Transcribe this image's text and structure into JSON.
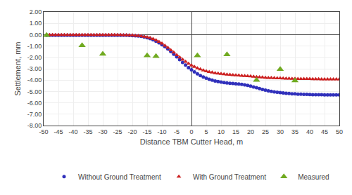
{
  "chart_data": {
    "type": "scatter",
    "x_label": "Distance TBM Cutter Head, m",
    "y_label": "Settlement, mm",
    "xlim": [
      -50,
      50
    ],
    "ylim": [
      -8.0,
      2.0
    ],
    "xticks": [
      -50,
      -45,
      -40,
      -35,
      -30,
      -25,
      -20,
      -15,
      -10,
      -5,
      0,
      5,
      10,
      15,
      20,
      25,
      30,
      35,
      40,
      45,
      50
    ],
    "yticks": [
      {
        "value": -8.0,
        "label": "-8.00"
      },
      {
        "value": -7.0,
        "label": "-7.00"
      },
      {
        "value": -6.0,
        "label": "-6.00"
      },
      {
        "value": -5.0,
        "label": "-5.00"
      },
      {
        "value": -4.0,
        "label": "-4.00"
      },
      {
        "value": -3.0,
        "label": "-3.00"
      },
      {
        "value": -2.0,
        "label": "-2.00"
      },
      {
        "value": -1.0,
        "label": "-1.00"
      },
      {
        "value": 0.0,
        "label": "0.00"
      },
      {
        "value": 1.0,
        "label": "1.00"
      },
      {
        "value": 2.0,
        "label": "2.00"
      }
    ],
    "grid": true,
    "legend": "bottom",
    "series": [
      {
        "name": "Without Ground Treatment",
        "color": "#3030bb",
        "marker": "circle",
        "x": [
          -49,
          -48,
          -47,
          -46,
          -45,
          -44,
          -43,
          -42,
          -41,
          -40,
          -39,
          -38,
          -37,
          -36,
          -35,
          -34,
          -33,
          -32,
          -31,
          -30,
          -29,
          -28,
          -27,
          -26,
          -25,
          -24,
          -23,
          -22,
          -21,
          -20,
          -19,
          -18,
          -17,
          -16,
          -15,
          -14,
          -13,
          -12,
          -11,
          -10,
          -9,
          -8,
          -7,
          -6,
          -5,
          -4,
          -3,
          -2,
          -1,
          0,
          1,
          2,
          3,
          4,
          5,
          6,
          7,
          8,
          9,
          10,
          11,
          12,
          13,
          14,
          15,
          16,
          17,
          18,
          19,
          20,
          21,
          22,
          23,
          24,
          25,
          26,
          27,
          28,
          29,
          30,
          31,
          32,
          33,
          34,
          35,
          36,
          37,
          38,
          39,
          40,
          41,
          42,
          43,
          44,
          45,
          46,
          47,
          48,
          49,
          50
        ],
        "values": [
          -0.05,
          -0.05,
          -0.05,
          -0.05,
          -0.05,
          -0.05,
          -0.05,
          -0.05,
          -0.05,
          -0.05,
          -0.05,
          -0.05,
          -0.05,
          -0.05,
          -0.05,
          -0.05,
          -0.05,
          -0.05,
          -0.05,
          -0.05,
          -0.05,
          -0.05,
          -0.05,
          -0.05,
          -0.05,
          -0.05,
          -0.05,
          -0.06,
          -0.07,
          -0.08,
          -0.1,
          -0.12,
          -0.15,
          -0.2,
          -0.27,
          -0.35,
          -0.45,
          -0.58,
          -0.72,
          -0.88,
          -1.05,
          -1.25,
          -1.48,
          -1.72,
          -1.95,
          -2.2,
          -2.45,
          -2.68,
          -2.9,
          -3.1,
          -3.28,
          -3.45,
          -3.6,
          -3.73,
          -3.84,
          -3.93,
          -4.01,
          -4.08,
          -4.13,
          -4.18,
          -4.22,
          -4.25,
          -4.28,
          -4.3,
          -4.32,
          -4.35,
          -4.38,
          -4.42,
          -4.47,
          -4.53,
          -4.6,
          -4.67,
          -4.74,
          -4.82,
          -4.88,
          -4.94,
          -4.99,
          -5.03,
          -5.07,
          -5.1,
          -5.13,
          -5.16,
          -5.18,
          -5.2,
          -5.21,
          -5.23,
          -5.24,
          -5.25,
          -5.26,
          -5.27,
          -5.28,
          -5.28,
          -5.29,
          -5.29,
          -5.3,
          -5.3,
          -5.3,
          -5.3,
          -5.3,
          -5.3
        ]
      },
      {
        "name": "With Ground Treatment",
        "color": "#cc2020",
        "marker": "triangle-up",
        "x": [
          -49,
          -48,
          -47,
          -46,
          -45,
          -44,
          -43,
          -42,
          -41,
          -40,
          -39,
          -38,
          -37,
          -36,
          -35,
          -34,
          -33,
          -32,
          -31,
          -30,
          -29,
          -28,
          -27,
          -26,
          -25,
          -24,
          -23,
          -22,
          -21,
          -20,
          -19,
          -18,
          -17,
          -16,
          -15,
          -14,
          -13,
          -12,
          -11,
          -10,
          -9,
          -8,
          -7,
          -6,
          -5,
          -4,
          -3,
          -2,
          -1,
          0,
          1,
          2,
          3,
          4,
          5,
          6,
          7,
          8,
          9,
          10,
          11,
          12,
          13,
          14,
          15,
          16,
          17,
          18,
          19,
          20,
          21,
          22,
          23,
          24,
          25,
          26,
          27,
          28,
          29,
          30,
          31,
          32,
          33,
          34,
          35,
          36,
          37,
          38,
          39,
          40,
          41,
          42,
          43,
          44,
          45,
          46,
          47,
          48,
          49,
          50
        ],
        "values": [
          -0.02,
          -0.02,
          -0.02,
          -0.02,
          -0.02,
          -0.02,
          -0.02,
          -0.02,
          -0.02,
          -0.02,
          -0.02,
          -0.02,
          -0.02,
          -0.02,
          -0.02,
          -0.02,
          -0.02,
          -0.02,
          -0.02,
          -0.02,
          -0.02,
          -0.02,
          -0.02,
          -0.02,
          -0.02,
          -0.02,
          -0.03,
          -0.04,
          -0.05,
          -0.06,
          -0.08,
          -0.1,
          -0.13,
          -0.17,
          -0.22,
          -0.29,
          -0.38,
          -0.49,
          -0.62,
          -0.78,
          -0.96,
          -1.15,
          -1.36,
          -1.57,
          -1.79,
          -2.0,
          -2.2,
          -2.38,
          -2.55,
          -2.7,
          -2.83,
          -2.95,
          -3.05,
          -3.14,
          -3.22,
          -3.28,
          -3.33,
          -3.38,
          -3.42,
          -3.45,
          -3.48,
          -3.51,
          -3.53,
          -3.55,
          -3.57,
          -3.59,
          -3.61,
          -3.63,
          -3.65,
          -3.67,
          -3.7,
          -3.72,
          -3.74,
          -3.76,
          -3.78,
          -3.8,
          -3.81,
          -3.82,
          -3.83,
          -3.84,
          -3.85,
          -3.86,
          -3.87,
          -3.88,
          -3.88,
          -3.89,
          -3.89,
          -3.9,
          -3.9,
          -3.9,
          -3.91,
          -3.91,
          -3.91,
          -3.92,
          -3.92,
          -3.92,
          -3.92,
          -3.92,
          -3.92,
          -3.92
        ]
      },
      {
        "name": "Measured",
        "color": "#70aa20",
        "marker": "triangle-up",
        "x": [
          -49,
          -37,
          -30,
          -15,
          -12,
          2,
          12,
          22,
          30,
          35
        ],
        "values": [
          -0.05,
          -0.95,
          -1.7,
          -1.85,
          -1.9,
          -1.85,
          -1.75,
          -4.0,
          -3.05,
          -4.05
        ]
      }
    ]
  }
}
